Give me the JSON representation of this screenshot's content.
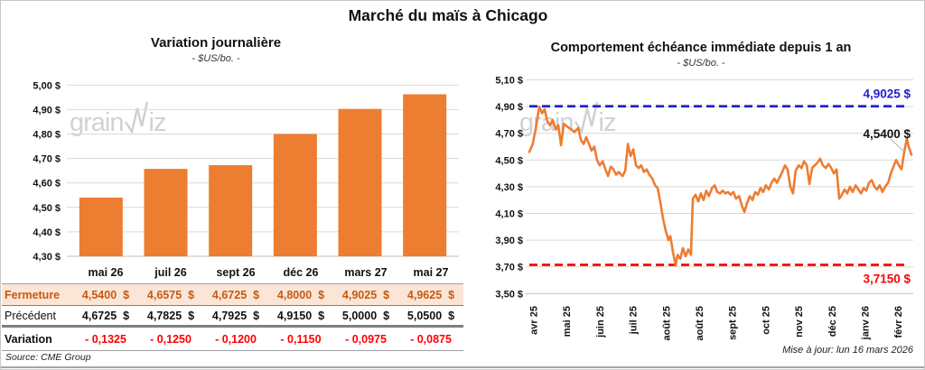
{
  "page": {
    "title": "Marché du maïs à Chicago",
    "source": "Source: CME Group",
    "updated": "Mise à jour: lun 16 mars 2026",
    "watermark_prefix": "grain",
    "watermark_suffix": "iz"
  },
  "colors": {
    "orange": "#ED7D31",
    "blue": "#2020CC",
    "red": "#FF0000",
    "fermeture_bg": "#FBE5D6",
    "fermeture_text": "#C55A11",
    "grid": "#D9D9D9",
    "axis": "#BFBFBF",
    "watermark": "#cfcfcf"
  },
  "chart_data": [
    {
      "type": "bar",
      "title": "Variation journalière",
      "subtitle": "- $US/bo. -",
      "categories": [
        "mai 26",
        "juil 26",
        "sept 26",
        "déc 26",
        "mars 27",
        "mai 27"
      ],
      "values": [
        4.54,
        4.6575,
        4.6725,
        4.8,
        4.9025,
        4.9625
      ],
      "ylim": [
        4.3,
        5.05
      ],
      "ytick_values": [
        5.0,
        4.9,
        4.8,
        4.7,
        4.6,
        4.5,
        4.4,
        4.3
      ],
      "ytick_labels": [
        "5,00 $",
        "4,90 $",
        "4,80 $",
        "4,70 $",
        "4,60 $",
        "4,50 $",
        "4,40 $",
        "4,30 $"
      ],
      "grid": true,
      "bar_color": "#ED7D31"
    },
    {
      "type": "line",
      "title": "Comportement échéance immédiate depuis 1 an",
      "subtitle": "- $US/bo. -",
      "ylim": [
        3.5,
        5.1
      ],
      "ytick_values": [
        5.1,
        4.9,
        4.7,
        4.5,
        4.3,
        4.1,
        3.9,
        3.7,
        3.5
      ],
      "ytick_labels": [
        "5,10 $",
        "4,90 $",
        "4,70 $",
        "4,50 $",
        "4,30 $",
        "4,10 $",
        "3,90 $",
        "3,70 $",
        "3,50 $"
      ],
      "xtick_labels": [
        "avr 25",
        "mai 25",
        "juin 25",
        "juil 25",
        "août 25",
        "août 25",
        "sept 25",
        "oct 25",
        "nov 25",
        "déc 25",
        "janv 26",
        "févr 26"
      ],
      "grid": true,
      "series_color": "#ED7D31",
      "ref_lines": [
        {
          "label": "4,9025 $",
          "value": 4.9025,
          "color": "#2020CC"
        },
        {
          "label": "3,7150 $",
          "value": 3.715,
          "color": "#FF0000"
        }
      ],
      "last_label": "4,5400 $",
      "last_value": 4.54,
      "points": [
        [
          0.0,
          4.56
        ],
        [
          0.009,
          4.62
        ],
        [
          0.017,
          4.74
        ],
        [
          0.026,
          4.9
        ],
        [
          0.033,
          4.85
        ],
        [
          0.04,
          4.88
        ],
        [
          0.047,
          4.79
        ],
        [
          0.054,
          4.76
        ],
        [
          0.061,
          4.8
        ],
        [
          0.069,
          4.73
        ],
        [
          0.076,
          4.76
        ],
        [
          0.083,
          4.61
        ],
        [
          0.09,
          4.77
        ],
        [
          0.099,
          4.75
        ],
        [
          0.109,
          4.73
        ],
        [
          0.118,
          4.71
        ],
        [
          0.128,
          4.74
        ],
        [
          0.135,
          4.65
        ],
        [
          0.142,
          4.62
        ],
        [
          0.149,
          4.67
        ],
        [
          0.156,
          4.62
        ],
        [
          0.163,
          4.57
        ],
        [
          0.17,
          4.6
        ],
        [
          0.177,
          4.5
        ],
        [
          0.184,
          4.46
        ],
        [
          0.192,
          4.49
        ],
        [
          0.199,
          4.43
        ],
        [
          0.206,
          4.38
        ],
        [
          0.213,
          4.45
        ],
        [
          0.22,
          4.43
        ],
        [
          0.227,
          4.39
        ],
        [
          0.234,
          4.41
        ],
        [
          0.244,
          4.38
        ],
        [
          0.251,
          4.42
        ],
        [
          0.258,
          4.62
        ],
        [
          0.265,
          4.53
        ],
        [
          0.272,
          4.58
        ],
        [
          0.279,
          4.46
        ],
        [
          0.286,
          4.44
        ],
        [
          0.293,
          4.46
        ],
        [
          0.3,
          4.41
        ],
        [
          0.307,
          4.43
        ],
        [
          0.314,
          4.39
        ],
        [
          0.322,
          4.36
        ],
        [
          0.329,
          4.31
        ],
        [
          0.336,
          4.29
        ],
        [
          0.343,
          4.18
        ],
        [
          0.35,
          4.06
        ],
        [
          0.357,
          3.97
        ],
        [
          0.364,
          3.9
        ],
        [
          0.369,
          3.93
        ],
        [
          0.376,
          3.81
        ],
        [
          0.383,
          3.71
        ],
        [
          0.388,
          3.79
        ],
        [
          0.395,
          3.76
        ],
        [
          0.402,
          3.84
        ],
        [
          0.409,
          3.78
        ],
        [
          0.416,
          3.83
        ],
        [
          0.423,
          3.79
        ],
        [
          0.428,
          4.21
        ],
        [
          0.435,
          4.24
        ],
        [
          0.442,
          4.19
        ],
        [
          0.449,
          4.25
        ],
        [
          0.456,
          4.2
        ],
        [
          0.463,
          4.27
        ],
        [
          0.47,
          4.23
        ],
        [
          0.478,
          4.29
        ],
        [
          0.485,
          4.31
        ],
        [
          0.492,
          4.26
        ],
        [
          0.499,
          4.25
        ],
        [
          0.506,
          4.27
        ],
        [
          0.513,
          4.25
        ],
        [
          0.52,
          4.26
        ],
        [
          0.527,
          4.24
        ],
        [
          0.534,
          4.26
        ],
        [
          0.541,
          4.21
        ],
        [
          0.549,
          4.23
        ],
        [
          0.556,
          4.16
        ],
        [
          0.563,
          4.11
        ],
        [
          0.57,
          4.18
        ],
        [
          0.577,
          4.23
        ],
        [
          0.584,
          4.2
        ],
        [
          0.591,
          4.26
        ],
        [
          0.598,
          4.24
        ],
        [
          0.605,
          4.29
        ],
        [
          0.612,
          4.26
        ],
        [
          0.619,
          4.31
        ],
        [
          0.627,
          4.28
        ],
        [
          0.634,
          4.33
        ],
        [
          0.641,
          4.36
        ],
        [
          0.648,
          4.33
        ],
        [
          0.655,
          4.37
        ],
        [
          0.662,
          4.41
        ],
        [
          0.669,
          4.46
        ],
        [
          0.676,
          4.43
        ],
        [
          0.683,
          4.3
        ],
        [
          0.69,
          4.25
        ],
        [
          0.697,
          4.42
        ],
        [
          0.705,
          4.46
        ],
        [
          0.712,
          4.44
        ],
        [
          0.719,
          4.49
        ],
        [
          0.726,
          4.46
        ],
        [
          0.733,
          4.32
        ],
        [
          0.74,
          4.44
        ],
        [
          0.747,
          4.46
        ],
        [
          0.754,
          4.48
        ],
        [
          0.761,
          4.51
        ],
        [
          0.768,
          4.46
        ],
        [
          0.776,
          4.44
        ],
        [
          0.783,
          4.47
        ],
        [
          0.79,
          4.44
        ],
        [
          0.797,
          4.4
        ],
        [
          0.804,
          4.43
        ],
        [
          0.811,
          4.21
        ],
        [
          0.818,
          4.24
        ],
        [
          0.825,
          4.28
        ],
        [
          0.832,
          4.25
        ],
        [
          0.839,
          4.3
        ],
        [
          0.846,
          4.26
        ],
        [
          0.854,
          4.31
        ],
        [
          0.861,
          4.28
        ],
        [
          0.868,
          4.25
        ],
        [
          0.875,
          4.29
        ],
        [
          0.882,
          4.27
        ],
        [
          0.889,
          4.33
        ],
        [
          0.896,
          4.35
        ],
        [
          0.903,
          4.3
        ],
        [
          0.91,
          4.28
        ],
        [
          0.917,
          4.31
        ],
        [
          0.924,
          4.26
        ],
        [
          0.931,
          4.3
        ],
        [
          0.939,
          4.33
        ],
        [
          0.946,
          4.4
        ],
        [
          0.953,
          4.45
        ],
        [
          0.96,
          4.5
        ],
        [
          0.967,
          4.46
        ],
        [
          0.974,
          4.43
        ],
        [
          0.981,
          4.56
        ],
        [
          0.988,
          4.66
        ],
        [
          0.993,
          4.6
        ],
        [
          1.0,
          4.54
        ]
      ]
    }
  ],
  "table": {
    "header": [
      "mai 26",
      "juil 26",
      "sept 26",
      "déc 26",
      "mars 27",
      "mai 27"
    ],
    "rows": [
      {
        "label": "Fermeture",
        "values": [
          "4,5400  $",
          "4,6575  $",
          "4,6725  $",
          "4,8000  $",
          "4,9025  $",
          "4,9625  $"
        ]
      },
      {
        "label": "Précédent",
        "values": [
          "4,6725  $",
          "4,7825  $",
          "4,7925  $",
          "4,9150  $",
          "5,0000  $",
          "5,0500  $"
        ]
      },
      {
        "label": "Variation",
        "values": [
          "- 0,1325",
          "- 0,1250",
          "- 0,1200",
          "- 0,1150",
          "- 0,0975",
          "- 0,0875"
        ]
      }
    ]
  }
}
